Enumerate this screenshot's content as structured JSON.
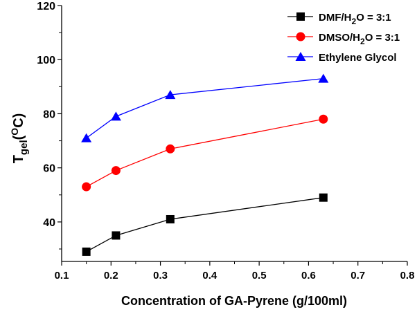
{
  "chart_data": {
    "type": "line",
    "title": "",
    "xlabel": "Concentration of GA-Pyrene (g/100ml)",
    "ylabel": {
      "main": "T",
      "sub": "gel",
      "open": "(",
      "sup": "O",
      "unit": "C)"
    },
    "xlim": [
      0.1,
      0.8
    ],
    "ylim": [
      25.4,
      120
    ],
    "xticks": [
      "0.1",
      "0.2",
      "0.3",
      "0.4",
      "0.5",
      "0.6",
      "0.7",
      "0.8"
    ],
    "yticks": [
      "40",
      "60",
      "80",
      "100",
      "120"
    ],
    "grid": false,
    "legend_position": "top-right",
    "x": [
      0.15,
      0.21,
      0.32,
      0.63
    ],
    "series": [
      {
        "name": "DMF/H2O = 3:1",
        "label_parts": [
          "DMF/H",
          "2",
          "O = 3:1"
        ],
        "color": "#000000",
        "marker": "square",
        "values": [
          29,
          35,
          41,
          49
        ]
      },
      {
        "name": "DMSO/H2O = 3:1",
        "label_parts": [
          "DMSO/H",
          "2",
          "O = 3:1"
        ],
        "color": "#ff0000",
        "marker": "circle",
        "values": [
          53,
          59,
          67,
          78
        ]
      },
      {
        "name": "Ethylene Glycol",
        "label_parts": [
          "Ethylene Glycol",
          "",
          ""
        ],
        "color": "#0000ff",
        "marker": "triangle",
        "values": [
          71,
          79,
          87,
          93
        ]
      }
    ]
  }
}
